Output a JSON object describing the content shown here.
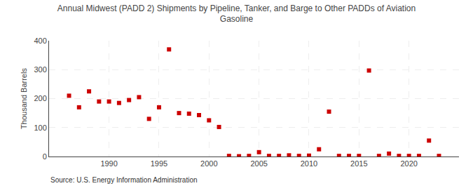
{
  "chart_data": {
    "type": "scatter",
    "title": "Annual Midwest (PADD 2) Shipments by Pipeline, Tanker, and Barge to Other PADDs of Aviation\nGasoline",
    "ylabel": "Thousand Barrels",
    "annotations": [
      "Source: U.S. Energy Information Administration"
    ],
    "x": [
      1986,
      1987,
      1988,
      1989,
      1990,
      1991,
      1992,
      1993,
      1994,
      1995,
      1996,
      1997,
      1998,
      1999,
      2000,
      2001,
      2002,
      2003,
      2004,
      2005,
      2006,
      2007,
      2008,
      2009,
      2010,
      2011,
      2012,
      2013,
      2014,
      2015,
      2016,
      2017,
      2018,
      2019,
      2020,
      2021,
      2022,
      2023
    ],
    "values": [
      210,
      170,
      225,
      190,
      190,
      185,
      195,
      205,
      130,
      170,
      370,
      150,
      148,
      143,
      125,
      102,
      2,
      1,
      2,
      15,
      2,
      2,
      4,
      2,
      3,
      25,
      155,
      2,
      2,
      2,
      297,
      2,
      10,
      2,
      2,
      2,
      55,
      2
    ],
    "color": "#cc0000",
    "marker": "square",
    "xlim": [
      1984,
      2025
    ],
    "xticks": [
      1990,
      1995,
      2000,
      2005,
      2010,
      2015,
      2020
    ],
    "ylim": [
      0,
      400
    ],
    "yticks": [
      0,
      100,
      200,
      300,
      400
    ],
    "grid": true
  }
}
